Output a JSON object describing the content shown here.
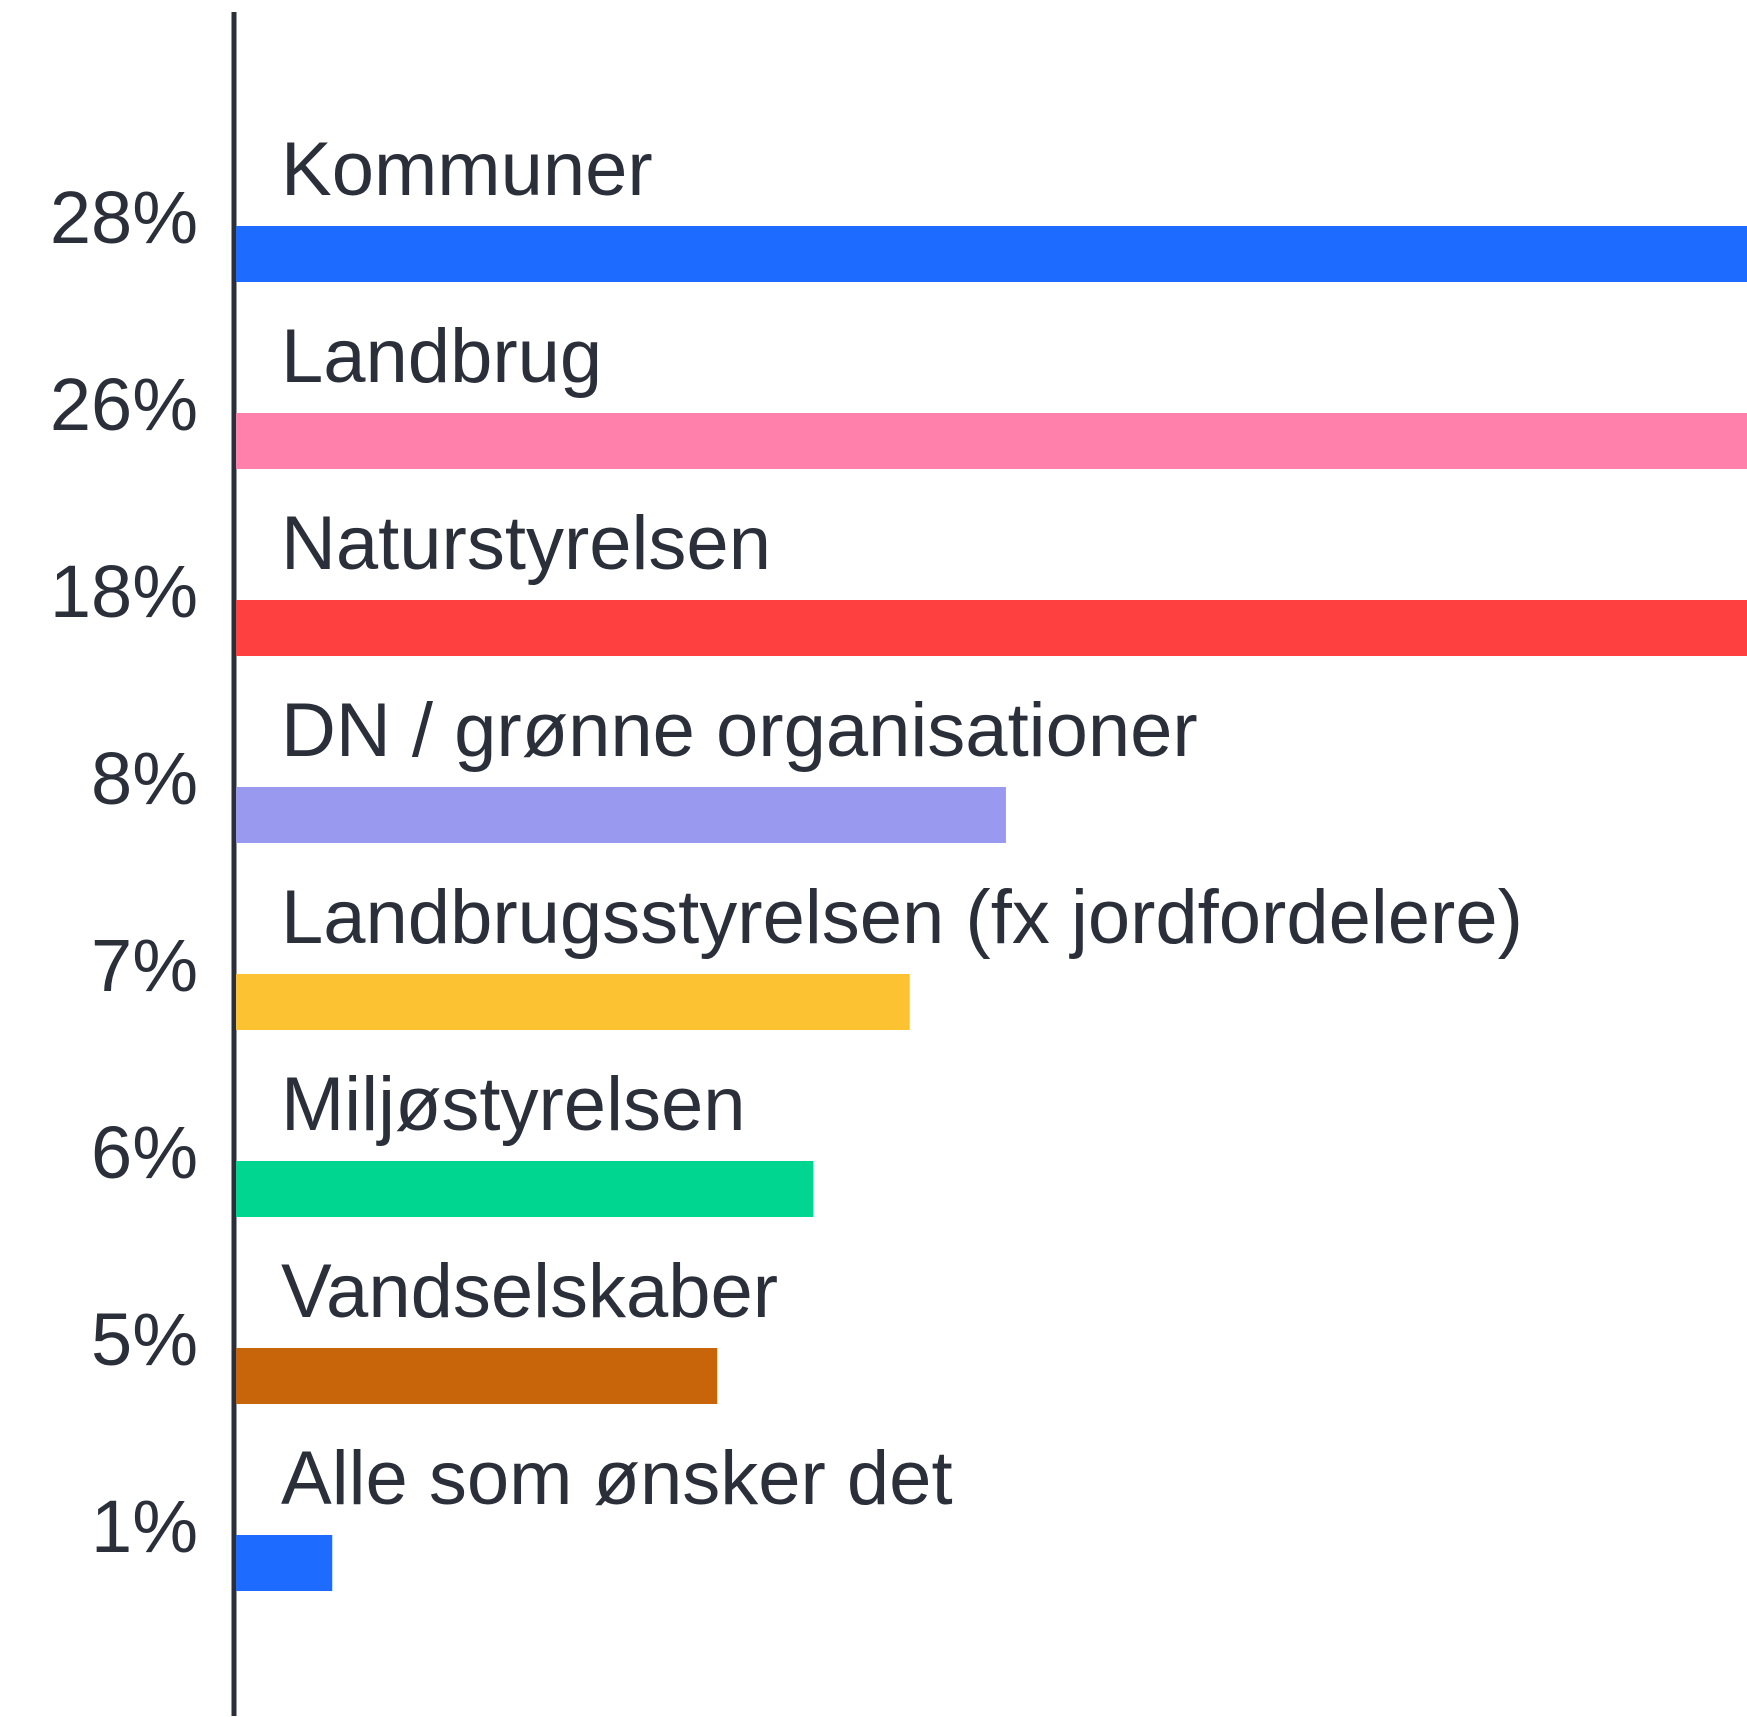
{
  "chart_data": {
    "type": "barh",
    "categories": [
      "Kommuner",
      "Landbrug",
      "Naturstyrelsen",
      "DN / grønne organisationer",
      "Landbrugsstyrelsen (fx jordfordelere)",
      "Miljøstyrelsen",
      "Vandselskaber",
      "Alle som ønsker det"
    ],
    "values": [
      28,
      26,
      18,
      8,
      7,
      6,
      5,
      1
    ],
    "value_labels": [
      "28%",
      "26%",
      "18%",
      "8%",
      "7%",
      "6%",
      "5%",
      "1%"
    ],
    "colors": [
      "#1e6bff",
      "#ff80ab",
      "#ff4040",
      "#9999f0",
      "#fdc232",
      "#00d68f",
      "#c8650a",
      "#1e6bff"
    ],
    "xlim": [
      0,
      15.7
    ]
  }
}
